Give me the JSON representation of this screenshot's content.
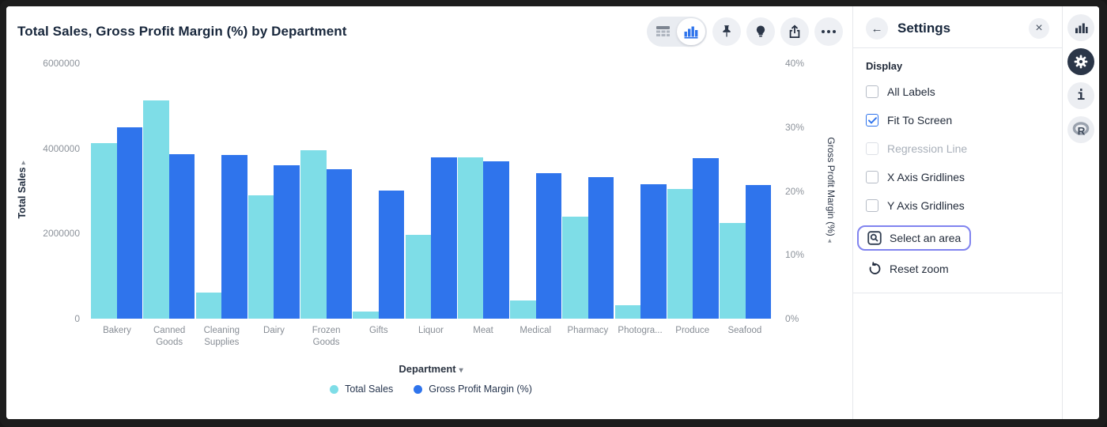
{
  "header": {
    "title": "Total Sales, Gross Profit Margin (%) by Department"
  },
  "chart_data": {
    "type": "bar",
    "categories": [
      "Bakery",
      "Canned Goods",
      "Cleaning Supplies",
      "Dairy",
      "Frozen Goods",
      "Gifts",
      "Liquor",
      "Meat",
      "Medical",
      "Pharmacy",
      "Photogra...",
      "Produce",
      "Seafood"
    ],
    "series": [
      {
        "name": "Total Sales",
        "axis": "left",
        "color": "#7EDDE7",
        "values": [
          4130000,
          5120000,
          610000,
          2900000,
          3950000,
          170000,
          1970000,
          3790000,
          430000,
          2400000,
          320000,
          3050000,
          2250000
        ]
      },
      {
        "name": "Gross Profit Margin (%)",
        "axis": "right",
        "color": "#2F74EC",
        "values": [
          30.0,
          25.7,
          25.6,
          24.0,
          23.4,
          20.1,
          25.3,
          24.6,
          22.8,
          22.2,
          21.1,
          25.1,
          20.9
        ]
      }
    ],
    "title": "Total Sales, Gross Profit Margin (%) by Department",
    "xlabel": "Department",
    "ylabel_left": "Total Sales",
    "ylabel_right": "Gross Profit Margin (%)",
    "y_left": {
      "min": 0,
      "max": 6000000,
      "ticks": [
        0,
        2000000,
        4000000,
        6000000
      ]
    },
    "y_right": {
      "min": 0,
      "max": 40,
      "ticks": [
        0,
        10,
        20,
        30,
        40
      ],
      "suffix": "%"
    },
    "gridlines": false,
    "legend_position": "bottom"
  },
  "settings_panel": {
    "title": "Settings",
    "section_heading": "Display",
    "checkboxes": [
      {
        "slug": "all-labels",
        "label": "All Labels",
        "checked": false,
        "disabled": false
      },
      {
        "slug": "fit-to-screen",
        "label": "Fit To Screen",
        "checked": true,
        "disabled": false
      },
      {
        "slug": "regression-line",
        "label": "Regression Line",
        "checked": false,
        "disabled": true
      },
      {
        "slug": "x-axis-gridlines",
        "label": "X Axis Gridlines",
        "checked": false,
        "disabled": false
      },
      {
        "slug": "y-axis-gridlines",
        "label": "Y Axis Gridlines",
        "checked": false,
        "disabled": false
      }
    ],
    "select_area_label": "Select an area",
    "reset_zoom_label": "Reset zoom"
  },
  "colors": {
    "total_sales": "#7EDDE7",
    "gross_profit_margin": "#2F74EC",
    "focus_ring": "#8083EF",
    "active_rail": "#2B3648"
  }
}
